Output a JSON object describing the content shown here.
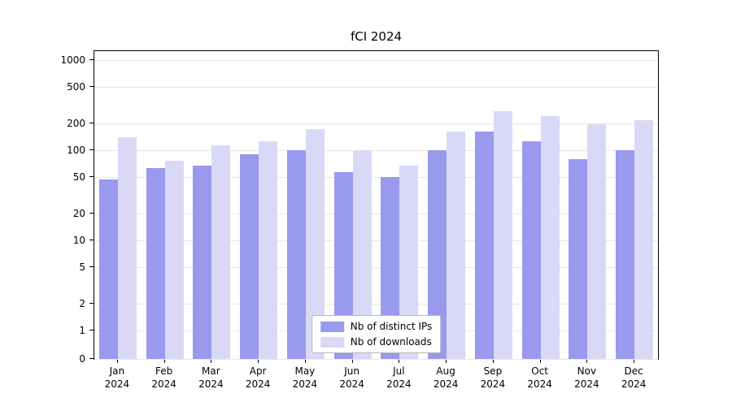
{
  "title": "fCI 2024",
  "chart_data": {
    "type": "bar",
    "title": "fCI 2024",
    "yscale": "symlog",
    "ylim": [
      0,
      1300
    ],
    "yticks": [
      0,
      1,
      2,
      5,
      10,
      20,
      50,
      100,
      200,
      500,
      1000
    ],
    "grid": true,
    "legend_position": "lower center",
    "categories": [
      "Jan 2024",
      "Feb 2024",
      "Mar 2024",
      "Apr 2024",
      "May 2024",
      "Jun 2024",
      "Jul 2024",
      "Aug 2024",
      "Sep 2024",
      "Oct 2024",
      "Nov 2024",
      "Dec 2024"
    ],
    "series": [
      {
        "name": "Nb of distinct IPs",
        "color": "#9999ee",
        "values": [
          47,
          64,
          68,
          90,
          100,
          57,
          50,
          100,
          160,
          125,
          80,
          100
        ]
      },
      {
        "name": "Nb of downloads",
        "color": "#d9d9f7",
        "values": [
          140,
          76,
          113,
          125,
          170,
          100,
          67,
          160,
          270,
          240,
          195,
          215
        ]
      }
    ],
    "colors": {
      "grid": "#e6e6e6",
      "axis": "#000000",
      "background": "#ffffff"
    }
  }
}
